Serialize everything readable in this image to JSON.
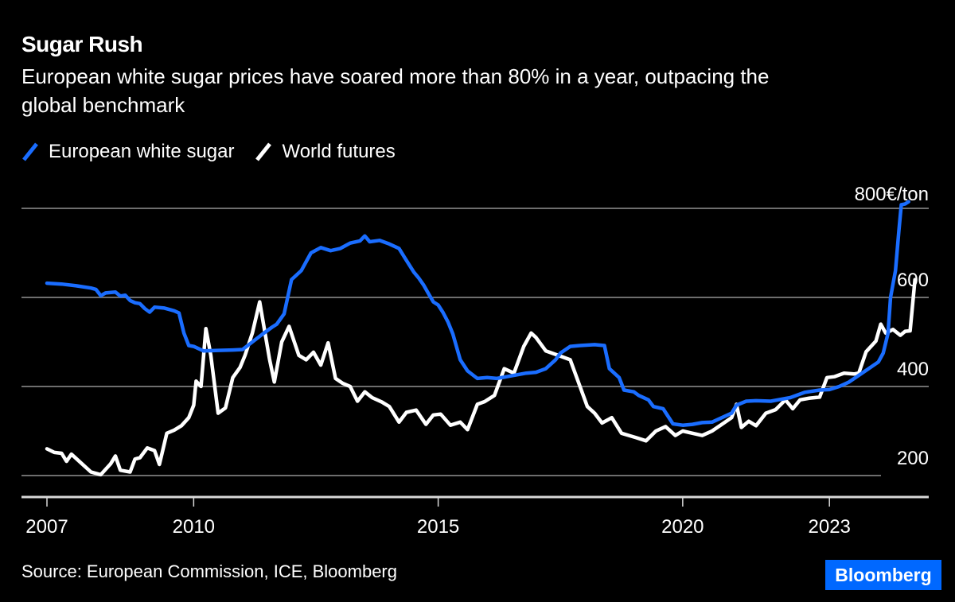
{
  "title": "Sugar Rush",
  "subtitle": "European white sugar prices have soared more than 80% in a year, outpacing the global benchmark",
  "source": "Source: European Commission, ICE, Bloomberg",
  "brand": {
    "label": "Bloomberg",
    "color": "#0068ff"
  },
  "colors": {
    "european": "#1a6dff",
    "world": "#ffffff",
    "grid": "#6e6e6e",
    "background": "#000000"
  },
  "chart_data": {
    "type": "line",
    "title": "Sugar Rush",
    "xlabel": "",
    "ylabel": "€/ton",
    "unit_label": "800€/ton",
    "xlim": [
      2007,
      2024.6
    ],
    "ylim": [
      145,
      800
    ],
    "y_ticks": [
      200,
      400,
      600,
      800
    ],
    "y_tick_labels": [
      "200",
      "400",
      "600",
      "800€/ton"
    ],
    "x_ticks": [
      2007,
      2010,
      2015,
      2020,
      2023
    ],
    "x_tick_labels": [
      "2007",
      "2010",
      "2015",
      "2020",
      "2023"
    ],
    "grid": true,
    "legend_position": "top-left",
    "series": [
      {
        "name": "European white sugar",
        "color": "#1a6dff",
        "points": [
          [
            2007.0,
            632
          ],
          [
            2007.3,
            630
          ],
          [
            2007.6,
            626
          ],
          [
            2007.9,
            621
          ],
          [
            2008.0,
            618
          ],
          [
            2008.1,
            604
          ],
          [
            2008.2,
            610
          ],
          [
            2008.4,
            612
          ],
          [
            2008.5,
            603
          ],
          [
            2008.6,
            605
          ],
          [
            2008.7,
            593
          ],
          [
            2008.8,
            588
          ],
          [
            2008.9,
            586
          ],
          [
            2009.0,
            575
          ],
          [
            2009.1,
            567
          ],
          [
            2009.2,
            578
          ],
          [
            2009.4,
            576
          ],
          [
            2009.6,
            570
          ],
          [
            2009.7,
            565
          ],
          [
            2009.8,
            520
          ],
          [
            2009.9,
            492
          ],
          [
            2010.0,
            490
          ],
          [
            2010.2,
            480
          ],
          [
            2010.5,
            481
          ],
          [
            2010.8,
            482
          ],
          [
            2011.0,
            483
          ],
          [
            2011.2,
            500
          ],
          [
            2011.4,
            517
          ],
          [
            2011.6,
            533
          ],
          [
            2011.7,
            540
          ],
          [
            2011.85,
            563
          ],
          [
            2012.0,
            640
          ],
          [
            2012.2,
            660
          ],
          [
            2012.4,
            700
          ],
          [
            2012.6,
            712
          ],
          [
            2012.8,
            705
          ],
          [
            2013.0,
            710
          ],
          [
            2013.2,
            722
          ],
          [
            2013.4,
            727
          ],
          [
            2013.5,
            738
          ],
          [
            2013.6,
            725
          ],
          [
            2013.8,
            728
          ],
          [
            2014.0,
            720
          ],
          [
            2014.2,
            710
          ],
          [
            2014.3,
            692
          ],
          [
            2014.5,
            657
          ],
          [
            2014.6,
            644
          ],
          [
            2014.7,
            628
          ],
          [
            2014.8,
            609
          ],
          [
            2014.9,
            590
          ],
          [
            2015.0,
            583
          ],
          [
            2015.1,
            566
          ],
          [
            2015.2,
            545
          ],
          [
            2015.3,
            518
          ],
          [
            2015.45,
            460
          ],
          [
            2015.6,
            435
          ],
          [
            2015.8,
            418
          ],
          [
            2016.0,
            420
          ],
          [
            2016.2,
            418
          ],
          [
            2016.4,
            422
          ],
          [
            2016.6,
            426
          ],
          [
            2016.8,
            430
          ],
          [
            2017.0,
            432
          ],
          [
            2017.2,
            440
          ],
          [
            2017.4,
            460
          ],
          [
            2017.5,
            475
          ],
          [
            2017.7,
            490
          ],
          [
            2017.9,
            492
          ],
          [
            2018.2,
            494
          ],
          [
            2018.4,
            492
          ],
          [
            2018.5,
            440
          ],
          [
            2018.7,
            420
          ],
          [
            2018.8,
            392
          ],
          [
            2019.0,
            388
          ],
          [
            2019.1,
            380
          ],
          [
            2019.3,
            370
          ],
          [
            2019.4,
            355
          ],
          [
            2019.6,
            350
          ],
          [
            2019.8,
            316
          ],
          [
            2020.0,
            313
          ],
          [
            2020.2,
            315
          ],
          [
            2020.4,
            319
          ],
          [
            2020.6,
            320
          ],
          [
            2020.8,
            330
          ],
          [
            2021.0,
            340
          ],
          [
            2021.1,
            358
          ],
          [
            2021.3,
            367
          ],
          [
            2021.5,
            368
          ],
          [
            2021.8,
            367
          ],
          [
            2022.0,
            371
          ],
          [
            2022.2,
            375
          ],
          [
            2022.5,
            387
          ],
          [
            2022.8,
            392
          ],
          [
            2023.0,
            393
          ],
          [
            2023.2,
            400
          ],
          [
            2023.4,
            410
          ],
          [
            2023.6,
            425
          ],
          [
            2023.8,
            440
          ],
          [
            2024.0,
            455
          ],
          [
            2024.1,
            475
          ],
          [
            2024.2,
            520
          ],
          [
            2024.25,
            600
          ],
          [
            2024.35,
            660
          ],
          [
            2024.42,
            750
          ],
          [
            2024.47,
            808
          ],
          [
            2024.55,
            810
          ],
          [
            2024.62,
            815
          ]
        ]
      },
      {
        "name": "World futures",
        "color": "#ffffff",
        "points": [
          [
            2007.0,
            260
          ],
          [
            2007.15,
            252
          ],
          [
            2007.3,
            250
          ],
          [
            2007.4,
            232
          ],
          [
            2007.5,
            248
          ],
          [
            2007.7,
            228
          ],
          [
            2007.9,
            208
          ],
          [
            2008.1,
            202
          ],
          [
            2008.3,
            226
          ],
          [
            2008.4,
            244
          ],
          [
            2008.5,
            212
          ],
          [
            2008.7,
            208
          ],
          [
            2008.8,
            237
          ],
          [
            2008.9,
            240
          ],
          [
            2009.05,
            262
          ],
          [
            2009.2,
            256
          ],
          [
            2009.3,
            225
          ],
          [
            2009.45,
            295
          ],
          [
            2009.6,
            302
          ],
          [
            2009.75,
            312
          ],
          [
            2009.9,
            330
          ],
          [
            2010.0,
            358
          ],
          [
            2010.05,
            412
          ],
          [
            2010.15,
            400
          ],
          [
            2010.25,
            530
          ],
          [
            2010.35,
            470
          ],
          [
            2010.5,
            340
          ],
          [
            2010.65,
            352
          ],
          [
            2010.8,
            420
          ],
          [
            2010.95,
            443
          ],
          [
            2011.05,
            470
          ],
          [
            2011.2,
            520
          ],
          [
            2011.35,
            590
          ],
          [
            2011.55,
            462
          ],
          [
            2011.65,
            410
          ],
          [
            2011.8,
            500
          ],
          [
            2011.95,
            535
          ],
          [
            2012.15,
            470
          ],
          [
            2012.3,
            460
          ],
          [
            2012.45,
            477
          ],
          [
            2012.6,
            448
          ],
          [
            2012.75,
            498
          ],
          [
            2012.9,
            418
          ],
          [
            2013.05,
            407
          ],
          [
            2013.2,
            400
          ],
          [
            2013.35,
            367
          ],
          [
            2013.5,
            388
          ],
          [
            2013.65,
            375
          ],
          [
            2013.85,
            365
          ],
          [
            2014.0,
            355
          ],
          [
            2014.2,
            320
          ],
          [
            2014.35,
            342
          ],
          [
            2014.55,
            347
          ],
          [
            2014.75,
            315
          ],
          [
            2014.9,
            336
          ],
          [
            2015.05,
            338
          ],
          [
            2015.25,
            313
          ],
          [
            2015.45,
            320
          ],
          [
            2015.6,
            303
          ],
          [
            2015.8,
            360
          ],
          [
            2015.95,
            366
          ],
          [
            2016.15,
            380
          ],
          [
            2016.35,
            440
          ],
          [
            2016.55,
            430
          ],
          [
            2016.75,
            490
          ],
          [
            2016.9,
            520
          ],
          [
            2017.0,
            510
          ],
          [
            2017.2,
            480
          ],
          [
            2017.45,
            470
          ],
          [
            2017.7,
            460
          ],
          [
            2017.9,
            400
          ],
          [
            2018.05,
            355
          ],
          [
            2018.2,
            340
          ],
          [
            2018.35,
            318
          ],
          [
            2018.55,
            330
          ],
          [
            2018.75,
            295
          ],
          [
            2018.9,
            290
          ],
          [
            2019.05,
            285
          ],
          [
            2019.25,
            278
          ],
          [
            2019.45,
            300
          ],
          [
            2019.65,
            310
          ],
          [
            2019.85,
            290
          ],
          [
            2020.0,
            300
          ],
          [
            2020.2,
            295
          ],
          [
            2020.4,
            290
          ],
          [
            2020.6,
            300
          ],
          [
            2020.8,
            315
          ],
          [
            2021.0,
            330
          ],
          [
            2021.1,
            360
          ],
          [
            2021.2,
            308
          ],
          [
            2021.35,
            322
          ],
          [
            2021.5,
            312
          ],
          [
            2021.7,
            340
          ],
          [
            2021.9,
            348
          ],
          [
            2022.1,
            370
          ],
          [
            2022.25,
            350
          ],
          [
            2022.4,
            370
          ],
          [
            2022.6,
            374
          ],
          [
            2022.8,
            376
          ],
          [
            2022.95,
            420
          ],
          [
            2023.1,
            422
          ],
          [
            2023.3,
            430
          ],
          [
            2023.5,
            428
          ],
          [
            2023.6,
            430
          ],
          [
            2023.75,
            478
          ],
          [
            2023.95,
            502
          ],
          [
            2024.05,
            540
          ],
          [
            2024.15,
            520
          ],
          [
            2024.3,
            528
          ],
          [
            2024.45,
            515
          ],
          [
            2024.55,
            524
          ],
          [
            2024.65,
            525
          ],
          [
            2024.75,
            640
          ]
        ]
      }
    ]
  }
}
